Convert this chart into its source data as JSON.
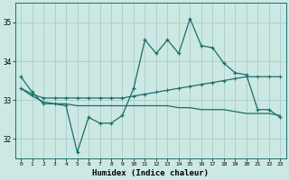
{
  "xlabel": "Humidex (Indice chaleur)",
  "background_color": "#cce8e3",
  "grid_color": "#aacccc",
  "line_color": "#1a6e6a",
  "x_values": [
    0,
    1,
    2,
    3,
    4,
    5,
    6,
    7,
    8,
    9,
    10,
    11,
    12,
    13,
    14,
    15,
    16,
    17,
    18,
    19,
    20,
    21,
    22,
    23
  ],
  "line1_y": [
    33.6,
    33.2,
    32.9,
    32.9,
    32.85,
    31.65,
    32.55,
    32.4,
    32.4,
    32.6,
    33.3,
    34.55,
    34.2,
    34.55,
    34.2,
    35.1,
    34.4,
    34.35,
    33.95,
    33.7,
    33.65,
    32.75,
    32.75,
    32.55
  ],
  "line2_y": [
    33.3,
    33.15,
    33.05,
    33.05,
    33.05,
    33.05,
    33.05,
    33.05,
    33.05,
    33.05,
    33.1,
    33.15,
    33.2,
    33.25,
    33.3,
    33.35,
    33.4,
    33.45,
    33.5,
    33.55,
    33.6,
    33.6,
    33.6,
    33.6
  ],
  "line3_y": [
    33.3,
    33.1,
    32.95,
    32.9,
    32.9,
    32.85,
    32.85,
    32.85,
    32.85,
    32.85,
    32.85,
    32.85,
    32.85,
    32.85,
    32.8,
    32.8,
    32.75,
    32.75,
    32.75,
    32.7,
    32.65,
    32.65,
    32.65,
    32.6
  ],
  "ylim": [
    31.5,
    35.5
  ],
  "yticks": [
    32,
    33,
    34,
    35
  ],
  "xlim": [
    -0.5,
    23.5
  ]
}
